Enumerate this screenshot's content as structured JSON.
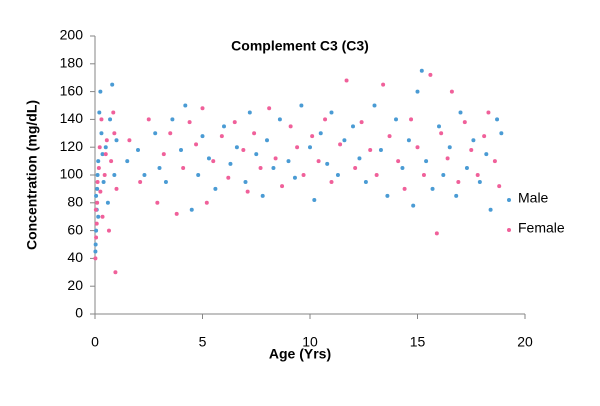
{
  "chart_data": {
    "type": "scatter",
    "title": "Complement C3 (C3)",
    "x_label": "Age (Yrs)",
    "y_label": "Concentration (mg/dL)",
    "xlim": [
      0,
      20
    ],
    "xticks": [
      0,
      5,
      10,
      15,
      20
    ],
    "ylim": [
      0,
      200
    ],
    "yticks": [
      0,
      20,
      40,
      60,
      80,
      100,
      120,
      140,
      160,
      180,
      200
    ],
    "grid": false,
    "legend": "right",
    "series": [
      {
        "name": "Male",
        "color": "#4a9bd4",
        "x": [
          0.02,
          0.05,
          0.08,
          0.1,
          0.12,
          0.15,
          0.2,
          0.25,
          0.3,
          0.05,
          0.4,
          0.5,
          0.6,
          0.7,
          0.8,
          0.9,
          1.0,
          0.03,
          0.15,
          0.35,
          1.5,
          2.0,
          2.3,
          2.8,
          3.0,
          3.3,
          3.6,
          4.0,
          4.2,
          4.5,
          4.8,
          5.0,
          5.3,
          5.6,
          6.0,
          6.3,
          6.6,
          7.0,
          7.2,
          7.5,
          7.8,
          8.0,
          8.3,
          8.6,
          9.0,
          9.3,
          9.6,
          10.0,
          10.2,
          10.5,
          10.8,
          11.0,
          11.3,
          11.6,
          12.0,
          12.3,
          12.6,
          13.0,
          13.3,
          13.6,
          14.0,
          14.3,
          14.6,
          14.8,
          15.0,
          15.2,
          15.4,
          15.7,
          16.0,
          16.2,
          16.5,
          16.8,
          17.0,
          17.3,
          17.6,
          17.9,
          18.2,
          18.4,
          18.7,
          18.9
        ],
        "values": [
          45,
          60,
          75,
          90,
          100,
          110,
          145,
          160,
          130,
          85,
          95,
          120,
          80,
          140,
          165,
          100,
          125,
          50,
          70,
          115,
          110,
          118,
          100,
          130,
          105,
          95,
          140,
          118,
          150,
          75,
          100,
          128,
          112,
          90,
          135,
          108,
          120,
          95,
          145,
          115,
          85,
          125,
          105,
          140,
          110,
          98,
          150,
          120,
          82,
          130,
          108,
          145,
          100,
          125,
          135,
          112,
          95,
          150,
          118,
          85,
          140,
          105,
          125,
          78,
          160,
          175,
          110,
          90,
          135,
          100,
          120,
          85,
          145,
          105,
          125,
          95,
          115,
          75,
          140,
          130
        ]
      },
      {
        "name": "Female",
        "color": "#f0609a",
        "x": [
          0.02,
          0.05,
          0.08,
          0.1,
          0.12,
          0.18,
          0.22,
          0.3,
          0.35,
          0.45,
          0.55,
          0.65,
          0.75,
          0.85,
          0.95,
          1.0,
          0.04,
          0.25,
          0.5,
          0.9,
          1.6,
          2.1,
          2.5,
          2.9,
          3.2,
          3.5,
          3.8,
          4.1,
          4.4,
          4.7,
          5.0,
          5.2,
          5.5,
          5.9,
          6.2,
          6.5,
          6.9,
          7.1,
          7.4,
          7.7,
          8.1,
          8.4,
          8.7,
          9.1,
          9.4,
          9.7,
          10.1,
          10.4,
          10.7,
          11.0,
          11.4,
          11.7,
          12.1,
          12.4,
          12.8,
          13.1,
          13.4,
          13.7,
          14.1,
          14.4,
          14.7,
          15.0,
          15.3,
          15.6,
          15.9,
          16.1,
          16.4,
          16.6,
          16.9,
          17.2,
          17.5,
          17.8,
          18.1,
          18.3,
          18.6,
          18.8
        ],
        "values": [
          40,
          55,
          65,
          80,
          95,
          105,
          120,
          140,
          70,
          100,
          125,
          60,
          110,
          145,
          30,
          90,
          75,
          88,
          115,
          130,
          125,
          95,
          140,
          80,
          115,
          130,
          72,
          105,
          138,
          122,
          148,
          80,
          110,
          128,
          98,
          138,
          118,
          88,
          130,
          105,
          148,
          112,
          92,
          135,
          120,
          100,
          128,
          110,
          140,
          95,
          122,
          168,
          105,
          138,
          118,
          100,
          165,
          128,
          110,
          90,
          140,
          120,
          100,
          172,
          58,
          130,
          112,
          160,
          95,
          138,
          118,
          100,
          128,
          145,
          110,
          92
        ]
      }
    ]
  }
}
